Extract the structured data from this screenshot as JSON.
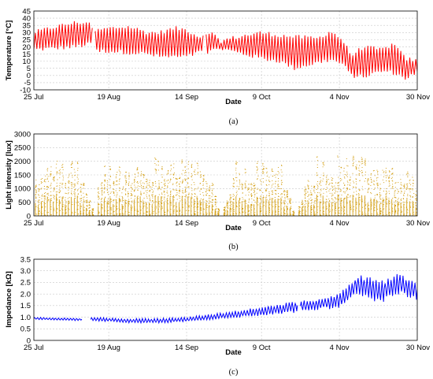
{
  "chart_data": [
    {
      "type": "line",
      "panel_label": "(a)",
      "xlabel": "Date",
      "ylabel": "Temperature [°C]",
      "ylim": [
        -10,
        45
      ],
      "yticks": [
        -10,
        -5,
        0,
        5,
        10,
        15,
        20,
        25,
        30,
        35,
        40,
        45
      ],
      "x_tick_labels": [
        "25 Jul",
        "19 Aug",
        "14 Sep",
        "9 Oct",
        "4 Nov",
        "30 Nov"
      ],
      "grid": true,
      "series": [
        {
          "color": "#ff0000",
          "description_of_trace": "daily temperature oscillation, min/max envelope by date",
          "envelope": [
            {
              "date": "2021-07-25",
              "min": 18,
              "max": 30
            },
            {
              "date": "2021-08-01",
              "min": 19,
              "max": 34
            },
            {
              "date": "2021-08-08",
              "min": 20,
              "max": 37
            },
            {
              "date": "2021-08-13",
              "min": 22,
              "max": 37
            },
            {
              "date": "2021-08-14",
              "min": 17,
              "max": 31
            },
            {
              "date": "2021-08-19",
              "min": 17,
              "max": 33
            },
            {
              "date": "2021-08-26",
              "min": 16,
              "max": 34
            },
            {
              "date": "2021-09-01",
              "min": 15,
              "max": 30
            },
            {
              "date": "2021-09-05",
              "min": 13,
              "max": 30
            },
            {
              "date": "2021-09-10",
              "min": 13,
              "max": 33
            },
            {
              "date": "2021-09-14",
              "min": 13,
              "max": 32
            },
            {
              "date": "2021-09-18",
              "min": 16,
              "max": 27
            },
            {
              "date": "2021-09-22",
              "min": 17,
              "max": 30
            },
            {
              "date": "2021-09-25",
              "min": 19,
              "max": 24
            },
            {
              "date": "2021-10-01",
              "min": 16,
              "max": 27
            },
            {
              "date": "2021-10-09",
              "min": 12,
              "max": 30
            },
            {
              "date": "2021-10-15",
              "min": 10,
              "max": 28
            },
            {
              "date": "2021-10-20",
              "min": 5,
              "max": 27
            },
            {
              "date": "2021-10-28",
              "min": 9,
              "max": 26
            },
            {
              "date": "2021-11-01",
              "min": 11,
              "max": 31
            },
            {
              "date": "2021-11-05",
              "min": 8,
              "max": 25
            },
            {
              "date": "2021-11-08",
              "min": 0,
              "max": 14
            },
            {
              "date": "2021-11-12",
              "min": -1,
              "max": 20
            },
            {
              "date": "2021-11-18",
              "min": 3,
              "max": 18
            },
            {
              "date": "2021-11-22",
              "min": 2,
              "max": 22
            },
            {
              "date": "2021-11-26",
              "min": -2,
              "max": 12
            },
            {
              "date": "2021-11-30",
              "min": 2,
              "max": 10
            }
          ]
        }
      ]
    },
    {
      "type": "scatter",
      "panel_label": "(b)",
      "xlabel": "Date",
      "ylabel": "Light intensity [lux]",
      "ylim": [
        0,
        3000
      ],
      "yticks": [
        0,
        500,
        1000,
        1500,
        2000,
        2500,
        3000
      ],
      "x_tick_labels": [
        "25 Jul",
        "19 Aug",
        "14 Sep",
        "9 Oct",
        "4 Nov",
        "30 Nov"
      ],
      "grid": true,
      "series": [
        {
          "color": "#d4a017",
          "description_of_trace": "daytime illuminance readings, daily peak by date",
          "daily_peaks": [
            {
              "date": "2021-07-25",
              "max": 1500
            },
            {
              "date": "2021-07-30",
              "max": 2200
            },
            {
              "date": "2021-08-05",
              "max": 2100
            },
            {
              "date": "2021-08-10",
              "max": 2200
            },
            {
              "date": "2021-08-14",
              "max": 0
            },
            {
              "date": "2021-08-17",
              "max": 2100
            },
            {
              "date": "2021-08-24",
              "max": 1900
            },
            {
              "date": "2021-09-01",
              "max": 2300
            },
            {
              "date": "2021-09-07",
              "max": 2000
            },
            {
              "date": "2021-09-14",
              "max": 2200
            },
            {
              "date": "2021-09-22",
              "max": 1800
            },
            {
              "date": "2021-09-25",
              "max": 0
            },
            {
              "date": "2021-10-01",
              "max": 2300
            },
            {
              "date": "2021-10-09",
              "max": 2000
            },
            {
              "date": "2021-10-15",
              "max": 2300
            },
            {
              "date": "2021-10-20",
              "max": 0
            },
            {
              "date": "2021-10-27",
              "max": 2300
            },
            {
              "date": "2021-11-04",
              "max": 2300
            },
            {
              "date": "2021-11-12",
              "max": 2300
            },
            {
              "date": "2021-11-20",
              "max": 2200
            },
            {
              "date": "2021-11-30",
              "max": 1500
            }
          ]
        }
      ]
    },
    {
      "type": "scatter",
      "panel_label": "(c)",
      "xlabel": "Date",
      "ylabel": "Impedance [kΩ]",
      "ylim": [
        0,
        3.5
      ],
      "yticks": [
        "0",
        "0.5",
        "1.0",
        "1.5",
        "2.0",
        "2.5",
        "3.0",
        "3.5"
      ],
      "x_tick_labels": [
        "25 Jul",
        "19 Aug",
        "14 Sep",
        "9 Oct",
        "4 Nov",
        "30 Nov"
      ],
      "grid": true,
      "series": [
        {
          "color": "#0000ff",
          "description_of_trace": "impedance trend with daily oscillation, center and half-amplitude by date",
          "trend": [
            {
              "date": "2021-07-25",
              "center": 0.95,
              "amp": 0.04
            },
            {
              "date": "2021-08-09",
              "center": 0.9,
              "amp": 0.04
            },
            {
              "date": "2021-08-14",
              "center": 0.92,
              "amp": 0.06
            },
            {
              "date": "2021-08-25",
              "center": 0.85,
              "amp": 0.07
            },
            {
              "date": "2021-09-05",
              "center": 0.85,
              "amp": 0.08
            },
            {
              "date": "2021-09-14",
              "center": 0.9,
              "amp": 0.08
            },
            {
              "date": "2021-09-25",
              "center": 1.05,
              "amp": 0.1
            },
            {
              "date": "2021-10-09",
              "center": 1.25,
              "amp": 0.15
            },
            {
              "date": "2021-10-20",
              "center": 1.45,
              "amp": 0.2
            },
            {
              "date": "2021-10-28",
              "center": 1.55,
              "amp": 0.18
            },
            {
              "date": "2021-11-04",
              "center": 1.7,
              "amp": 0.25
            },
            {
              "date": "2021-11-10",
              "center": 2.4,
              "amp": 0.35
            },
            {
              "date": "2021-11-18",
              "center": 2.1,
              "amp": 0.4
            },
            {
              "date": "2021-11-24",
              "center": 2.45,
              "amp": 0.35
            },
            {
              "date": "2021-11-30",
              "center": 2.1,
              "amp": 0.35
            }
          ],
          "gaps": [
            [
              "2021-08-10",
              "2021-08-13"
            ],
            [
              "2021-10-21",
              "2021-10-22"
            ]
          ]
        }
      ]
    }
  ]
}
